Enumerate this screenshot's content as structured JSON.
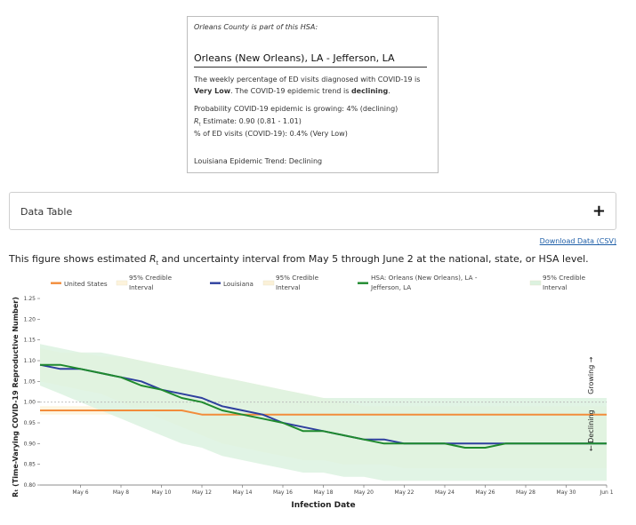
{
  "info_card": {
    "intro": "Orleans County is part of this HSA:",
    "hsa_name": "Orleans (New Orleans), LA - Jefferson, LA",
    "desc_1": "The weekly percentage of ED visits diagnosed with COVID-19 is ",
    "desc_level": "Very Low",
    "desc_2": ". The COVID-19 epidemic trend is ",
    "desc_trend": "declining",
    "desc_3": ".",
    "probability": "Probability COVID-19 epidemic is growing: 4% (declining)",
    "rt_symbol": "R",
    "rt_sub": "t",
    "rt_estimate": " Estimate: 0.90 (0.81 - 1.01)",
    "ed_visits": "% of ED visits (COVID-19): 0.4% (Very Low)",
    "state_trend": "Louisiana Epidemic Trend: Declining"
  },
  "data_table": {
    "label": "Data Table",
    "toggle": "+"
  },
  "download_link": "Download Data (CSV)",
  "caption": {
    "before": "This figure shows estimated ",
    "symbol": "R",
    "sub": "t",
    "after": " and uncertainty interval from May 5 through June 2 at the national, state, or HSA level."
  },
  "chart_data": {
    "type": "line",
    "xlabel": "Infection Date",
    "ylabel": "Rₜ (Time-Varying COVID-19 Reproductive Number)",
    "ylim": [
      0.8,
      1.25
    ],
    "xlim": [
      "2025-05-04",
      "2025-06-01"
    ],
    "yticks": [
      "0.80",
      "0.85",
      "0.90",
      "0.95",
      "1.00",
      "1.05",
      "1.10",
      "1.15",
      "1.20",
      "1.25"
    ],
    "xticks": [
      "May 6",
      "May 8",
      "May 10",
      "May 12",
      "May 14",
      "May 16",
      "May 18",
      "May 20",
      "May 22",
      "May 24",
      "May 26",
      "May 28",
      "May 30",
      "Jun 1"
    ],
    "reference_line": 1.0,
    "grid": false,
    "legend_position": "top",
    "trend_labels": {
      "up": "Growing →",
      "down": "← Declining"
    },
    "x": [
      "May 4",
      "May 5",
      "May 6",
      "May 7",
      "May 8",
      "May 9",
      "May 10",
      "May 11",
      "May 12",
      "May 13",
      "May 14",
      "May 15",
      "May 16",
      "May 17",
      "May 18",
      "May 19",
      "May 20",
      "May 21",
      "May 22",
      "May 23",
      "May 24",
      "May 25",
      "May 26",
      "May 27",
      "May 28",
      "May 29",
      "May 30",
      "May 31",
      "Jun 1"
    ],
    "series": [
      {
        "name": "United States",
        "color": "#f28c3b",
        "values": [
          0.98,
          0.98,
          0.98,
          0.98,
          0.98,
          0.98,
          0.98,
          0.98,
          0.97,
          0.97,
          0.97,
          0.97,
          0.97,
          0.97,
          0.97,
          0.97,
          0.97,
          0.97,
          0.97,
          0.97,
          0.97,
          0.97,
          0.97,
          0.97,
          0.97,
          0.97,
          0.97,
          0.97,
          0.97
        ],
        "ci_lower": [
          0.97,
          0.97,
          0.97,
          0.97,
          0.97,
          0.97,
          0.97,
          0.97,
          0.96,
          0.96,
          0.96,
          0.96,
          0.96,
          0.96,
          0.96,
          0.96,
          0.96,
          0.96,
          0.96,
          0.96,
          0.96,
          0.96,
          0.96,
          0.96,
          0.96,
          0.96,
          0.96,
          0.96,
          0.96
        ],
        "ci_upper": [
          0.99,
          0.99,
          0.99,
          0.99,
          0.99,
          0.99,
          0.99,
          0.99,
          0.98,
          0.98,
          0.98,
          0.98,
          0.98,
          0.98,
          0.98,
          0.98,
          0.98,
          0.98,
          0.98,
          0.98,
          0.98,
          0.98,
          0.98,
          0.98,
          0.98,
          0.98,
          0.98,
          0.98,
          0.98
        ],
        "ci_label": "95% Credible Interval",
        "ci_color": "#fdf3dc"
      },
      {
        "name": "Louisiana",
        "color": "#2e3f9e",
        "values": [
          1.09,
          1.08,
          1.08,
          1.07,
          1.06,
          1.05,
          1.03,
          1.02,
          1.01,
          0.99,
          0.98,
          0.97,
          0.95,
          0.94,
          0.93,
          0.92,
          0.91,
          0.91,
          0.9,
          0.9,
          0.9,
          0.9,
          0.9,
          0.9,
          0.9,
          0.9,
          0.9,
          0.9,
          0.9
        ],
        "ci_lower": [
          1.05,
          1.04,
          1.03,
          1.02,
          1.0,
          0.98,
          0.96,
          0.94,
          0.92,
          0.9,
          0.89,
          0.88,
          0.87,
          0.86,
          0.86,
          0.85,
          0.85,
          0.85,
          0.84,
          0.84,
          0.84,
          0.84,
          0.84,
          0.84,
          0.84,
          0.84,
          0.84,
          0.84,
          0.84
        ],
        "ci_upper": [
          1.13,
          1.12,
          1.12,
          1.11,
          1.11,
          1.1,
          1.09,
          1.08,
          1.07,
          1.06,
          1.05,
          1.04,
          1.03,
          1.02,
          1.01,
          1.0,
          0.99,
          0.99,
          0.99,
          0.99,
          0.99,
          0.99,
          0.99,
          0.99,
          0.99,
          0.99,
          0.99,
          0.99,
          0.99
        ],
        "ci_label": "95% Credible Interval",
        "ci_color": "#fbf1d8"
      },
      {
        "name": "HSA: Orleans (New Orleans), LA - Jefferson, LA",
        "color": "#1f8a2e",
        "values": [
          1.09,
          1.09,
          1.08,
          1.07,
          1.06,
          1.04,
          1.03,
          1.01,
          1.0,
          0.98,
          0.97,
          0.96,
          0.95,
          0.93,
          0.93,
          0.92,
          0.91,
          0.9,
          0.9,
          0.9,
          0.9,
          0.89,
          0.89,
          0.9,
          0.9,
          0.9,
          0.9,
          0.9,
          0.9
        ],
        "ci_lower": [
          1.04,
          1.02,
          1.0,
          0.98,
          0.96,
          0.94,
          0.92,
          0.9,
          0.89,
          0.87,
          0.86,
          0.85,
          0.84,
          0.83,
          0.83,
          0.82,
          0.82,
          0.81,
          0.81,
          0.81,
          0.81,
          0.81,
          0.81,
          0.81,
          0.81,
          0.81,
          0.81,
          0.81,
          0.81
        ],
        "ci_upper": [
          1.14,
          1.13,
          1.12,
          1.12,
          1.11,
          1.1,
          1.09,
          1.08,
          1.07,
          1.06,
          1.05,
          1.04,
          1.03,
          1.02,
          1.01,
          1.01,
          1.01,
          1.01,
          1.01,
          1.01,
          1.01,
          1.01,
          1.01,
          1.01,
          1.01,
          1.01,
          1.01,
          1.01,
          1.01
        ],
        "ci_label": "95% Credible Interval",
        "ci_color": "#dcf2e0"
      }
    ]
  }
}
